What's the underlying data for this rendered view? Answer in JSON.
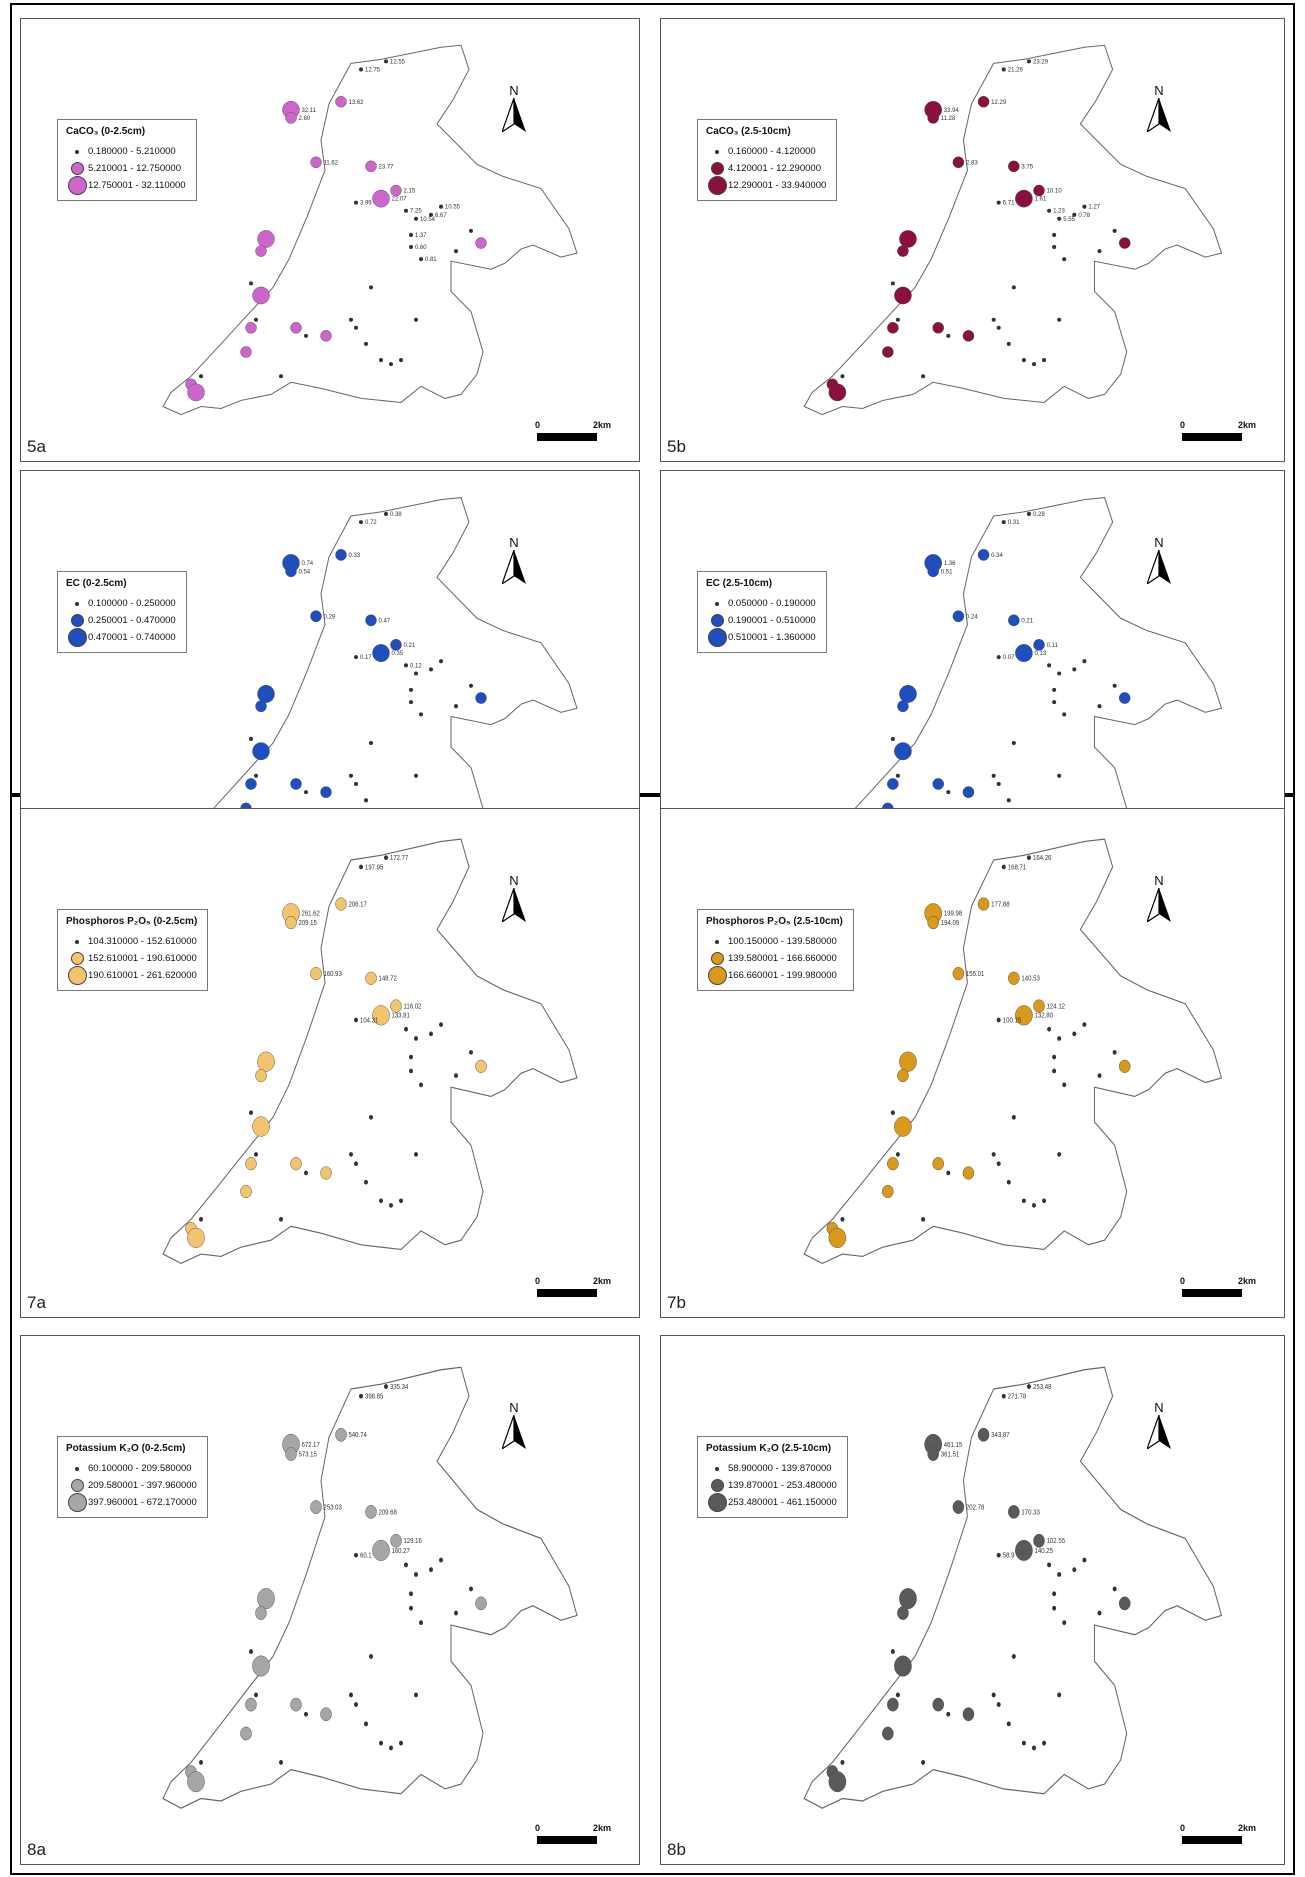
{
  "panels": [
    {
      "label": "5a",
      "legend_title": "CaCO₃ (0-2.5cm)",
      "color": "#cc66cc",
      "classes": [
        "0.180000 - 5.210000",
        "5.210001 - 12.750000",
        "12.750001 - 32.110000"
      ]
    },
    {
      "label": "5b",
      "legend_title": "CaCO₃ (2.5-10cm)",
      "color": "#8b1040",
      "classes": [
        "0.160000 - 4.120000",
        "4.120001 - 12.290000",
        "12.290001 - 33.940000"
      ]
    },
    {
      "label": "6a",
      "legend_title": "EC (0-2.5cm)",
      "color": "#1f4fbf",
      "classes": [
        "0.100000 - 0.250000",
        "0.250001 - 0.470000",
        "0.470001 - 0.740000"
      ]
    },
    {
      "label": "6b",
      "legend_title": "EC (2.5-10cm)",
      "color": "#1f4fbf",
      "classes": [
        "0.050000 - 0.190000",
        "0.190001 - 0.510000",
        "0.510001 - 1.360000"
      ]
    },
    {
      "label": "7a",
      "legend_title": "Phosphoros P₂O₅ (0-2.5cm)",
      "color": "#f2c46e",
      "classes": [
        "104.310000 - 152.610000",
        "152.610001 - 190.610000",
        "190.610001 - 261.620000"
      ]
    },
    {
      "label": "7b",
      "legend_title": "Phosphoros P₂O₅ (2.5-10cm)",
      "color": "#d99a1c",
      "classes": [
        "100.150000 - 139.580000",
        "139.580001 - 166.660000",
        "166.660001 - 199.980000"
      ]
    },
    {
      "label": "8a",
      "legend_title": "Potassium K₂O (0-2.5cm)",
      "color": "#a6a6a6",
      "classes": [
        "60.100000 - 209.580000",
        "209.580001 - 397.960000",
        "397.960001 - 672.170000"
      ]
    },
    {
      "label": "8b",
      "legend_title": "Potassium K₂O (2.5-10cm)",
      "color": "#5a5a5a",
      "classes": [
        "58.900000 - 139.870000",
        "139.870001 - 253.480000",
        "253.480001 - 461.150000"
      ]
    }
  ],
  "north_label": "N",
  "scale": {
    "start": "0",
    "end": "2km"
  },
  "sample_values": {
    "5a": [
      "32.11",
      "2.60",
      "13.62",
      "12.75",
      "12.55",
      "11.62",
      "23.77",
      "22.07",
      "2.15",
      "3.99",
      "7.25",
      "10.54",
      "6.67",
      "10.55",
      "1.37",
      "0.60",
      "0.81"
    ],
    "5b": [
      "33.94",
      "11.28",
      "12.29",
      "21.26",
      "23.29",
      "2.83",
      "3.75",
      "1.61",
      "10.10",
      "6.71",
      "1.23",
      "5.55",
      "0.78",
      "1.27"
    ],
    "6a": [
      "0.74",
      "0.54",
      "0.33",
      "0.72",
      "0.38",
      "0.29",
      "0.47",
      "0.35",
      "0.21",
      "0.17",
      "0.12"
    ],
    "6b": [
      "1.36",
      "0.51",
      "0.34",
      "0.31",
      "0.28",
      "0.24",
      "0.21",
      "0.13",
      "0.11",
      "0.07"
    ],
    "7a": [
      "261.62",
      "209.15",
      "206.17",
      "197.95",
      "172.77",
      "160.93",
      "148.72",
      "133.81",
      "116.02",
      "104.31"
    ],
    "7b": [
      "199.98",
      "194.09",
      "177.88",
      "168.71",
      "164.26",
      "155.01",
      "140.53",
      "132.80",
      "124.12",
      "100.15"
    ],
    "8a": [
      "672.17",
      "573.15",
      "540.74",
      "398.85",
      "335.34",
      "253.03",
      "209.68",
      "160.27",
      "129.16",
      "60.1"
    ],
    "8b": [
      "461.15",
      "361.51",
      "343.87",
      "271.78",
      "253.48",
      "202.78",
      "170.33",
      "140.25",
      "102.55",
      "58.9"
    ]
  }
}
